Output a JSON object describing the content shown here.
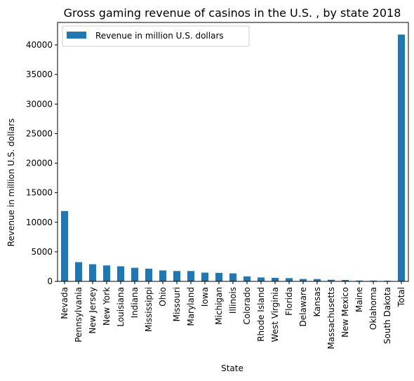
{
  "chart_data": {
    "type": "bar",
    "title": "Gross gaming revenue of casinos in the U.S. , by state 2018",
    "xlabel": "State",
    "ylabel": "Revenue in million U.S. dollars",
    "categories": [
      "Nevada",
      "Pennsylvania",
      "New Jersey",
      "New York",
      "Louisiana",
      "Indiana",
      "Mississippi",
      "Ohio",
      "Missouri",
      "Maryland",
      "Iowa",
      "Michigan",
      "Illinois",
      "Colorado",
      "Rhode Island",
      "West Virginia",
      "Florida",
      "Delaware",
      "Kansas",
      "Massachusetts",
      "New Mexico",
      "Maine",
      "Oklahoma",
      "South Dakota",
      "Total"
    ],
    "series": [
      {
        "name": "Revenue in million U.S. dollars",
        "values": [
          11900,
          3250,
          2900,
          2700,
          2550,
          2300,
          2150,
          1850,
          1750,
          1750,
          1480,
          1440,
          1350,
          840,
          660,
          600,
          550,
          400,
          390,
          270,
          240,
          140,
          130,
          110,
          41750
        ],
        "color": "#1f77b4"
      }
    ],
    "yticks": [
      0,
      5000,
      10000,
      15000,
      20000,
      25000,
      30000,
      35000,
      40000
    ],
    "ylim": [
      0,
      43800
    ],
    "grid": false,
    "legend": "upper left"
  }
}
